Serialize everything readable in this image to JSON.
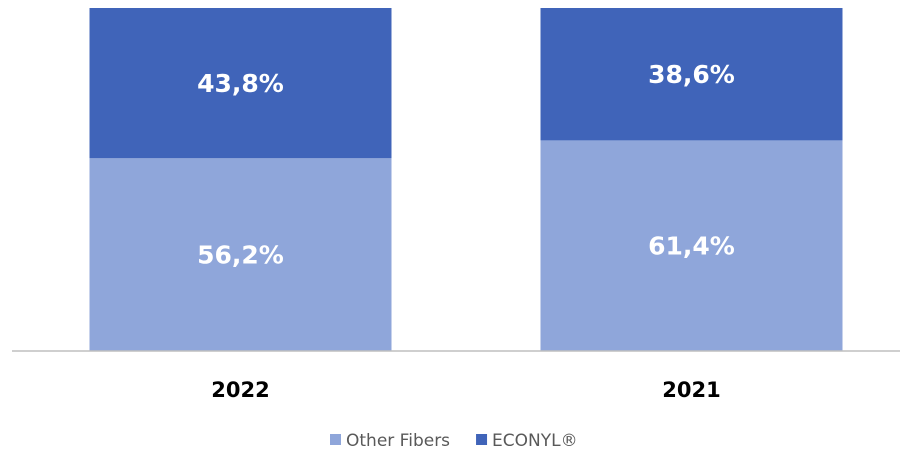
{
  "chart_data": {
    "type": "stacked_bar",
    "categories": [
      "2022",
      "2021"
    ],
    "series": [
      {
        "name": "Other Fibers",
        "color": "#8fa6da",
        "values": [
          56.2,
          61.4
        ],
        "value_labels": [
          "56,2%",
          "61,4%"
        ]
      },
      {
        "name": "ECONYL®",
        "color": "#4064b9",
        "values": [
          43.8,
          38.6
        ],
        "value_labels": [
          "43,8%",
          "38,6%"
        ]
      }
    ],
    "ylim": [
      0,
      100
    ],
    "legend": "bottom"
  }
}
